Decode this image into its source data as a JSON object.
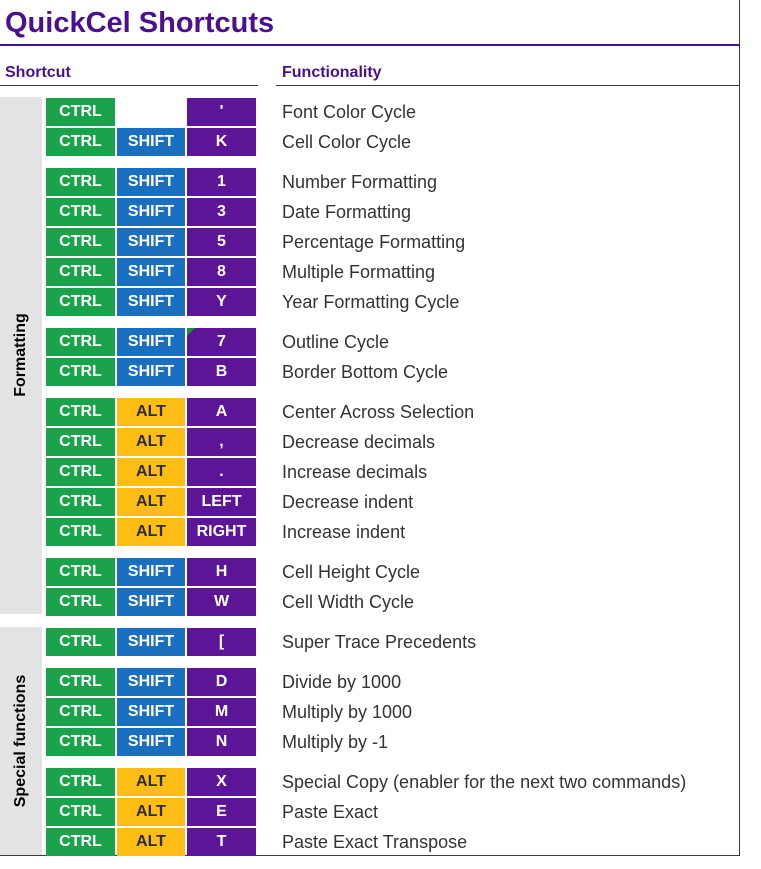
{
  "title": "QuickCel Shortcuts",
  "headers": {
    "shortcut": "Shortcut",
    "functionality": "Functionality"
  },
  "sections": [
    {
      "label": "Formatting"
    },
    {
      "label": "Special functions"
    }
  ],
  "colors": {
    "ctrl": "#1aa34a",
    "shift": "#1a6fc0",
    "alt": "#fdbd14",
    "key": "#5b1596",
    "title": "#4a1090"
  },
  "rows": [
    {
      "ctrl": "CTRL",
      "mod": "",
      "key": "'",
      "func": "Font Color Cycle"
    },
    {
      "ctrl": "CTRL",
      "mod": "SHIFT",
      "key": "K",
      "func": "Cell Color Cycle"
    },
    {
      "ctrl": "CTRL",
      "mod": "SHIFT",
      "key": "1",
      "func": "Number Formatting"
    },
    {
      "ctrl": "CTRL",
      "mod": "SHIFT",
      "key": "3",
      "func": "Date Formatting"
    },
    {
      "ctrl": "CTRL",
      "mod": "SHIFT",
      "key": "5",
      "func": "Percentage Formatting"
    },
    {
      "ctrl": "CTRL",
      "mod": "SHIFT",
      "key": "8",
      "func": "Multiple Formatting"
    },
    {
      "ctrl": "CTRL",
      "mod": "SHIFT",
      "key": "Y",
      "func": "Year Formatting Cycle"
    },
    {
      "ctrl": "CTRL",
      "mod": "SHIFT",
      "key": "7",
      "func": "Outline Cycle"
    },
    {
      "ctrl": "CTRL",
      "mod": "SHIFT",
      "key": "B",
      "func": "Border Bottom Cycle"
    },
    {
      "ctrl": "CTRL",
      "mod": "ALT",
      "key": "A",
      "func": "Center Across Selection"
    },
    {
      "ctrl": "CTRL",
      "mod": "ALT",
      "key": ",",
      "func": "Decrease decimals"
    },
    {
      "ctrl": "CTRL",
      "mod": "ALT",
      "key": ".",
      "func": "Increase decimals"
    },
    {
      "ctrl": "CTRL",
      "mod": "ALT",
      "key": "LEFT",
      "func": "Decrease indent"
    },
    {
      "ctrl": "CTRL",
      "mod": "ALT",
      "key": "RIGHT",
      "func": "Increase indent"
    },
    {
      "ctrl": "CTRL",
      "mod": "SHIFT",
      "key": "H",
      "func": "Cell Height Cycle"
    },
    {
      "ctrl": "CTRL",
      "mod": "SHIFT",
      "key": "W",
      "func": "Cell Width Cycle"
    },
    {
      "ctrl": "CTRL",
      "mod": "SHIFT",
      "key": "[",
      "func": "Super Trace Precedents"
    },
    {
      "ctrl": "CTRL",
      "mod": "SHIFT",
      "key": "D",
      "func": "Divide by 1000"
    },
    {
      "ctrl": "CTRL",
      "mod": "SHIFT",
      "key": "M",
      "func": "Multiply by 1000"
    },
    {
      "ctrl": "CTRL",
      "mod": "SHIFT",
      "key": "N",
      "func": "Multiply by -1"
    },
    {
      "ctrl": "CTRL",
      "mod": "ALT",
      "key": "X",
      "func": "Special Copy (enabler for the next two commands)"
    },
    {
      "ctrl": "CTRL",
      "mod": "ALT",
      "key": "E",
      "func": "Paste Exact"
    },
    {
      "ctrl": "CTRL",
      "mod": "ALT",
      "key": "T",
      "func": "Paste Exact Transpose"
    }
  ]
}
